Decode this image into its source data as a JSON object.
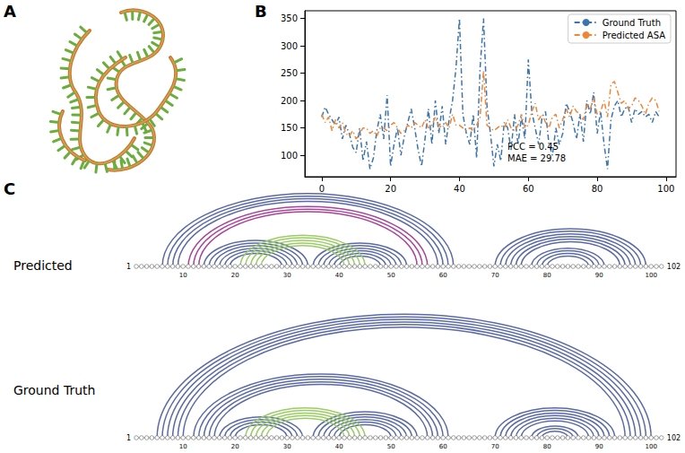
{
  "panel_labels": [
    "A",
    "B",
    "C"
  ],
  "chart_data": {
    "type": "line",
    "x": [
      0,
      1,
      2,
      3,
      4,
      5,
      6,
      7,
      8,
      9,
      10,
      11,
      12,
      13,
      14,
      15,
      16,
      17,
      18,
      19,
      20,
      21,
      22,
      23,
      24,
      25,
      26,
      27,
      28,
      29,
      30,
      31,
      32,
      33,
      34,
      35,
      36,
      37,
      38,
      39,
      40,
      41,
      42,
      43,
      44,
      45,
      46,
      47,
      48,
      49,
      50,
      51,
      52,
      53,
      54,
      55,
      56,
      57,
      58,
      59,
      60,
      61,
      62,
      63,
      64,
      65,
      66,
      67,
      68,
      69,
      70,
      71,
      72,
      73,
      74,
      75,
      76,
      77,
      78,
      79,
      80,
      81,
      82,
      83,
      84,
      85,
      86,
      87,
      88,
      89,
      90,
      91,
      92,
      93,
      94,
      95,
      96,
      97,
      98
    ],
    "series": [
      {
        "name": "Ground Truth",
        "color": "#3b75af",
        "line_style": "dashdot",
        "values": [
          170,
          188,
          175,
          165,
          155,
          170,
          130,
          155,
          140,
          115,
          105,
          150,
          90,
          125,
          75,
          95,
          145,
          175,
          130,
          210,
          80,
          120,
          150,
          100,
          135,
          160,
          185,
          150,
          110,
          80,
          130,
          185,
          120,
          200,
          140,
          190,
          120,
          165,
          200,
          260,
          350,
          175,
          140,
          120,
          175,
          95,
          260,
          350,
          190,
          140,
          80,
          120,
          90,
          160,
          150,
          110,
          175,
          120,
          170,
          130,
          275,
          180,
          150,
          120,
          170,
          180,
          120,
          100,
          150,
          120,
          140,
          195,
          180,
          160,
          130,
          175,
          125,
          200,
          175,
          215,
          140,
          180,
          120,
          75,
          165,
          190,
          200,
          170,
          185,
          190,
          160,
          185,
          175,
          180,
          170,
          175,
          160,
          180,
          170
        ]
      },
      {
        "name": "Predicted ASA",
        "color": "#ef8636",
        "line_style": "dashdot",
        "values": [
          175,
          160,
          170,
          145,
          165,
          150,
          160,
          140,
          135,
          145,
          130,
          140,
          150,
          150,
          140,
          145,
          135,
          150,
          150,
          145,
          155,
          160,
          150,
          140,
          145,
          155,
          150,
          160,
          155,
          150,
          165,
          150,
          155,
          170,
          155,
          150,
          160,
          150,
          175,
          155,
          155,
          150,
          145,
          150,
          145,
          155,
          170,
          255,
          155,
          150,
          145,
          150,
          155,
          150,
          165,
          150,
          145,
          155,
          175,
          150,
          155,
          180,
          195,
          165,
          175,
          160,
          150,
          170,
          175,
          150,
          165,
          185,
          170,
          190,
          180,
          175,
          165,
          195,
          185,
          205,
          175,
          180,
          200,
          170,
          230,
          235,
          215,
          195,
          200,
          185,
          190,
          205,
          200,
          190,
          175,
          195,
          205,
          200,
          180
        ]
      }
    ],
    "xlim": [
      -4.9,
      102.9
    ],
    "xticks": [
      0,
      20,
      40,
      60,
      80,
      100
    ],
    "ylim": [
      61,
      364
    ],
    "yticks": [
      100,
      150,
      200,
      250,
      300,
      350
    ],
    "grid": false,
    "legend": "upper right",
    "annotations": [
      "PCC = 0.45",
      "MAE = 29.78"
    ]
  },
  "arc_diagram": {
    "positions": [
      1,
      102
    ],
    "ticks": [
      10,
      20,
      30,
      40,
      50,
      60,
      70,
      80,
      90,
      100
    ],
    "rows": [
      {
        "label": "Predicted",
        "stems": [
          {
            "start": 6,
            "end": 62,
            "pairs": 4,
            "color": "#5b6aa6"
          },
          {
            "start": 11,
            "end": 57,
            "pairs": 3,
            "color": "#a8459a"
          },
          {
            "start": 14,
            "end": 34,
            "pairs": 6,
            "color": "#5b6aa6"
          },
          {
            "start": 35,
            "end": 53,
            "pairs": 6,
            "color": "#5b6aa6"
          },
          {
            "start": 21,
            "end": 45,
            "pairs": 5,
            "color": "#9ccc65"
          },
          {
            "start": 70,
            "end": 99,
            "pairs": 6,
            "color": "#5b6aa6"
          },
          {
            "start": 77,
            "end": 91,
            "pairs": 4,
            "color": "#5b6aa6"
          }
        ]
      },
      {
        "label": "Ground Truth",
        "stems": [
          {
            "start": 5,
            "end": 100,
            "pairs": 6,
            "color": "#5b6aa6"
          },
          {
            "start": 12,
            "end": 61,
            "pairs": 5,
            "color": "#5b6aa6"
          },
          {
            "start": 17,
            "end": 33,
            "pairs": 4,
            "color": "#5b6aa6"
          },
          {
            "start": 35,
            "end": 55,
            "pairs": 6,
            "color": "#5b6aa6"
          },
          {
            "start": 22,
            "end": 45,
            "pairs": 5,
            "color": "#9ccc65"
          },
          {
            "start": 70,
            "end": 93,
            "pairs": 6,
            "color": "#5b6aa6"
          },
          {
            "start": 77,
            "end": 86,
            "pairs": 3,
            "color": "#5b6aa6"
          }
        ]
      }
    ]
  }
}
